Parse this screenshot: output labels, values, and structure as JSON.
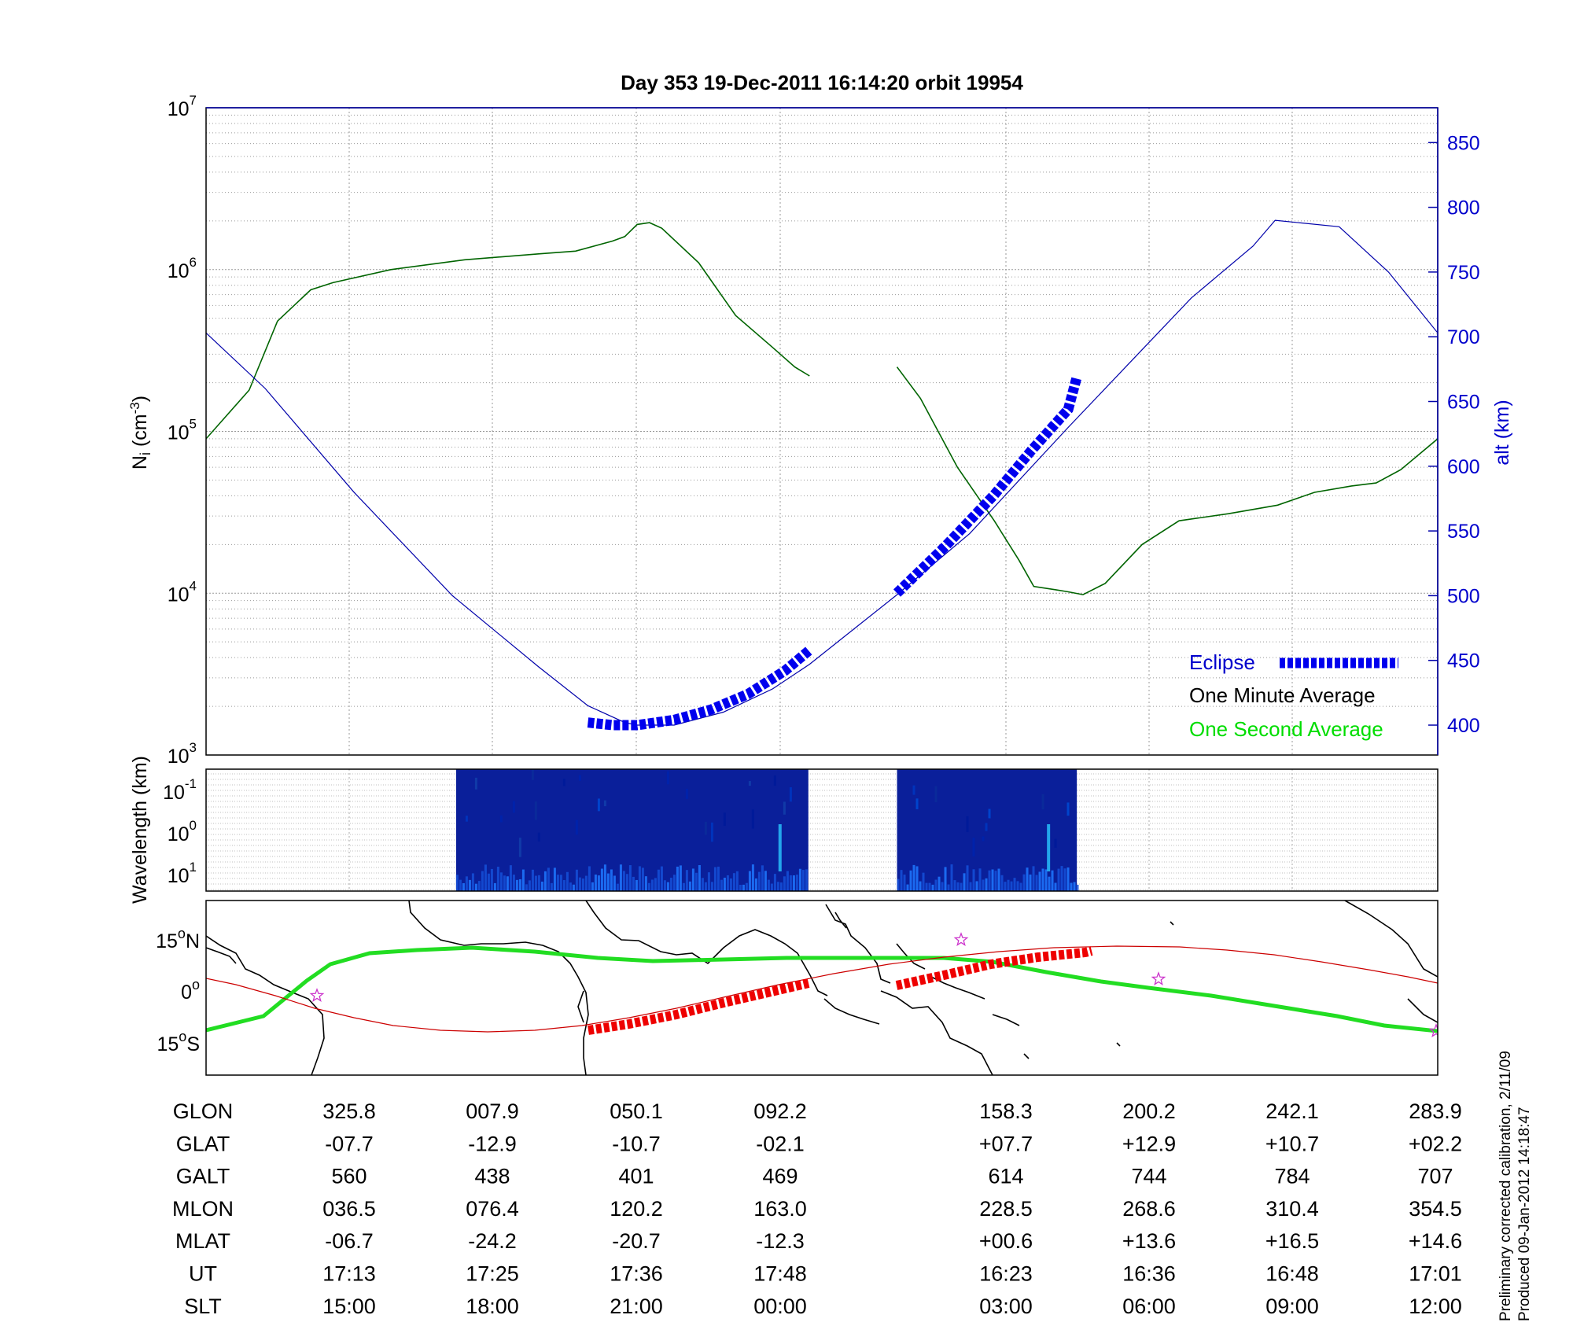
{
  "title": "Day 353  19-Dec-2011 16:14:20   orbit 19954",
  "colors": {
    "density": "#006400",
    "altitude": "#0000aa",
    "eclipse": "#0000ee",
    "one_second": "#00dd00",
    "track": "#cc0000",
    "eclipse_track": "#ee0000",
    "magnetic_equator": "#22dd22",
    "star": "#cc33cc"
  },
  "density_panel": {
    "ylabel_main": "N",
    "ylabel_sub": "i",
    "ylabel_unit_open": " (cm",
    "ylabel_unit_exp": "-3",
    "ylabel_unit_close": ")",
    "ylabel_right": "alt (km)",
    "y_ticks": [
      {
        "base": "10",
        "exp": "3"
      },
      {
        "base": "10",
        "exp": "4"
      },
      {
        "base": "10",
        "exp": "5"
      },
      {
        "base": "10",
        "exp": "6"
      },
      {
        "base": "10",
        "exp": "7"
      }
    ],
    "alt_ticks": [
      "400",
      "450",
      "500",
      "550",
      "600",
      "650",
      "700",
      "750",
      "800",
      "850"
    ]
  },
  "legend": {
    "eclipse": "Eclipse",
    "one_minute": "One Minute Average",
    "one_second": "One Second Average"
  },
  "spectrogram_panel": {
    "ylabel": "Wavelength (km)",
    "y_ticks": [
      {
        "base": "10",
        "exp": "-1"
      },
      {
        "base": "10",
        "exp": "0"
      },
      {
        "base": "10",
        "exp": "1"
      }
    ]
  },
  "map_panel": {
    "lat_ticks": [
      {
        "num": "15",
        "deg": "o",
        "hemi": "N"
      },
      {
        "num": "0",
        "deg": "o",
        "hemi": ""
      },
      {
        "num": "15",
        "deg": "o",
        "hemi": "S"
      }
    ]
  },
  "table": {
    "rows": [
      {
        "label": "GLON",
        "values": [
          "325.8",
          "007.9",
          "050.1",
          "092.2",
          "158.3",
          "200.2",
          "242.1",
          "283.9"
        ]
      },
      {
        "label": "GLAT",
        "values": [
          "-07.7",
          "-12.9",
          "-10.7",
          "-02.1",
          "+07.7",
          "+12.9",
          "+10.7",
          "+02.2"
        ]
      },
      {
        "label": "GALT",
        "values": [
          "560",
          "438",
          "401",
          "469",
          "614",
          "744",
          "784",
          "707"
        ]
      },
      {
        "label": "MLON",
        "values": [
          "036.5",
          "076.4",
          "120.2",
          "163.0",
          "228.5",
          "268.6",
          "310.4",
          "354.5"
        ]
      },
      {
        "label": "MLAT",
        "values": [
          "-06.7",
          "-24.2",
          "-20.7",
          "-12.3",
          "+00.6",
          "+13.6",
          "+16.5",
          "+14.6"
        ]
      },
      {
        "label": "UT",
        "values": [
          "17:13",
          "17:25",
          "17:36",
          "17:48",
          "16:23",
          "16:36",
          "16:48",
          "17:01"
        ]
      },
      {
        "label": "SLT",
        "values": [
          "15:00",
          "18:00",
          "21:00",
          "00:00",
          "03:00",
          "06:00",
          "09:00",
          "12:00"
        ]
      }
    ]
  },
  "notes": {
    "line1": "Preliminary corrected calibration, 2/11/09",
    "line2": "Produced 09-Jan-2012 14:18:47"
  },
  "chart_data": [
    {
      "type": "line",
      "panel": "ion density and altitude",
      "x_unit": "fraction of plotted orbit",
      "x_ticks_slt": [
        "15:00",
        "18:00",
        "21:00",
        "00:00",
        "03:00",
        "06:00",
        "09:00",
        "12:00"
      ],
      "ylim": [
        1000,
        10000000
      ],
      "y_scale": "log",
      "y2lim": [
        380,
        880
      ],
      "grid": true,
      "legend_position": "bottom-right",
      "series": [
        {
          "name": "One Minute Average",
          "axis": "left",
          "segments": [
            [
              [
                0.0,
                90000
              ],
              [
                0.035,
                180000
              ],
              [
                0.058,
                480000
              ],
              [
                0.085,
                750000
              ],
              [
                0.103,
                830000
              ],
              [
                0.15,
                1000000
              ],
              [
                0.21,
                1150000
              ],
              [
                0.27,
                1250000
              ],
              [
                0.3,
                1300000
              ],
              [
                0.33,
                1500000
              ],
              [
                0.34,
                1600000
              ],
              [
                0.35,
                1900000
              ],
              [
                0.36,
                1950000
              ],
              [
                0.37,
                1800000
              ],
              [
                0.4,
                1100000
              ],
              [
                0.43,
                520000
              ],
              [
                0.46,
                330000
              ],
              [
                0.478,
                250000
              ],
              [
                0.49,
                220000
              ]
            ],
            [
              [
                0.561,
                250000
              ],
              [
                0.58,
                160000
              ],
              [
                0.61,
                60000
              ],
              [
                0.64,
                28000
              ],
              [
                0.66,
                16000
              ],
              [
                0.672,
                11000
              ],
              [
                0.69,
                10500
              ],
              [
                0.7,
                10200
              ],
              [
                0.712,
                9800
              ],
              [
                0.73,
                11500
              ],
              [
                0.76,
                20000
              ],
              [
                0.79,
                28000
              ],
              [
                0.83,
                31000
              ],
              [
                0.87,
                35000
              ],
              [
                0.9,
                42000
              ],
              [
                0.93,
                46000
              ],
              [
                0.95,
                48000
              ],
              [
                0.97,
                58000
              ],
              [
                1.0,
                90000
              ]
            ]
          ]
        },
        {
          "name": "altitude",
          "axis": "right",
          "segments": [
            [
              [
                0.0,
                703
              ],
              [
                0.0625,
                649
              ],
              [
                0.125,
                583
              ],
              [
                0.1875,
                516
              ],
              [
                0.25,
                460
              ],
              [
                0.3125,
                418
              ],
              [
                0.375,
                397
              ],
              [
                0.4375,
                399
              ],
              [
                0.5,
                423
              ],
              [
                0.5625,
                467
              ],
              [
                0.625,
                526
              ],
              [
                0.6875,
                592
              ],
              [
                0.75,
                656
              ],
              [
                0.8125,
                712
              ],
              [
                0.875,
                754
              ],
              [
                0.9375,
                781
              ],
              [
                1.0,
                790
              ]
            ]
          ],
          "alt_peak": [
            0.868,
            790
          ],
          "alt_end": [
            1.0,
            703
          ],
          "profile": [
            [
              0.0,
              703
            ],
            [
              0.048,
              660
            ],
            [
              0.12,
              580
            ],
            [
              0.2,
              500
            ],
            [
              0.27,
              445
            ],
            [
              0.31,
              415
            ],
            [
              0.34,
              402
            ],
            [
              0.35,
              400
            ],
            [
              0.38,
              400
            ],
            [
              0.42,
              410
            ],
            [
              0.46,
              428
            ],
            [
              0.49,
              447
            ],
            [
              0.56,
              500
            ],
            [
              0.62,
              548
            ],
            [
              0.7,
              630
            ],
            [
              0.75,
              680
            ],
            [
              0.8,
              730
            ],
            [
              0.85,
              770
            ],
            [
              0.868,
              790
            ],
            [
              0.92,
              785
            ],
            [
              0.96,
              750
            ],
            [
              1.0,
              703
            ]
          ]
        },
        {
          "name": "Eclipse",
          "axis": "right",
          "segments": [
            [
              [
                0.31,
                402
              ],
              [
                0.33,
                400
              ],
              [
                0.35,
                400
              ],
              [
                0.38,
                404
              ],
              [
                0.41,
                412
              ],
              [
                0.44,
                424
              ],
              [
                0.47,
                442
              ],
              [
                0.49,
                458
              ]
            ],
            [
              [
                0.561,
                502
              ],
              [
                0.6,
                538
              ],
              [
                0.64,
                578
              ],
              [
                0.67,
                612
              ],
              [
                0.7,
                644
              ],
              [
                0.707,
                669
              ]
            ]
          ]
        }
      ]
    },
    {
      "type": "heatmap",
      "panel": "wavelength spectrogram",
      "ylabel": "Wavelength (km)",
      "y_scale": "log",
      "colored_intervals": [
        [
          0.203,
          0.489
        ],
        [
          0.561,
          0.707
        ]
      ]
    }
  ]
}
